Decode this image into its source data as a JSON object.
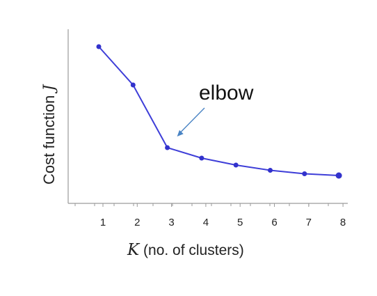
{
  "chart_data": {
    "type": "line",
    "x": [
      1,
      2,
      3,
      4,
      5,
      6,
      7,
      8
    ],
    "series": [
      {
        "values": [
          9.0,
          6.8,
          3.2,
          2.6,
          2.2,
          1.9,
          1.7,
          1.6
        ],
        "color": "#3e3ed8"
      }
    ],
    "xlabel_var": "K",
    "xlabel_rest": " (no. of clusters)",
    "ylabel_text": "Cost function ",
    "ylabel_var": "J",
    "xticks": [
      "1",
      "2",
      "3",
      "4",
      "5",
      "6",
      "7",
      "8"
    ],
    "xlim": [
      0,
      8
    ],
    "ylim": [
      0,
      10
    ],
    "grid": false,
    "annotations": [
      {
        "text": "elbow",
        "points_to_x": 3
      }
    ]
  }
}
